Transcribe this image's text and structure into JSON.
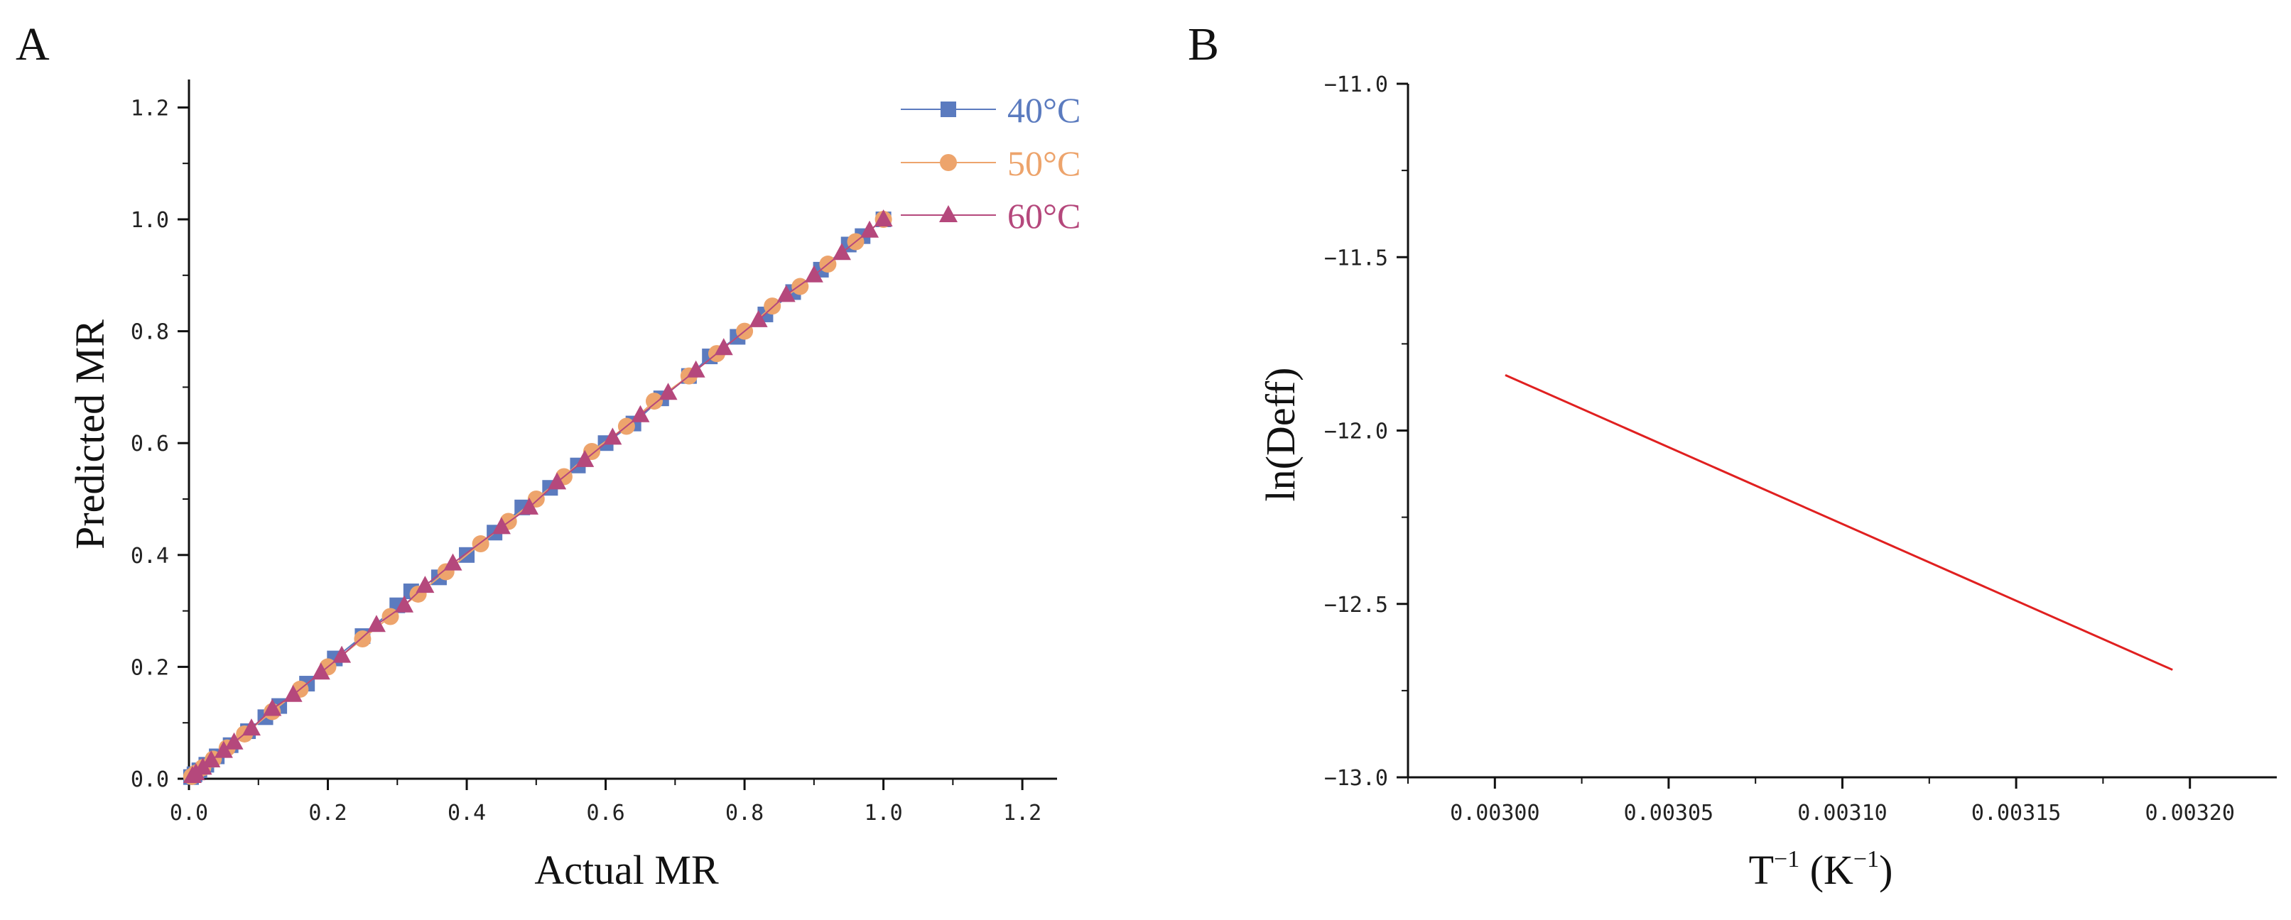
{
  "panel_a_label": "A",
  "panel_b_label": "B",
  "chart_data": [
    {
      "type": "scatter",
      "panel": "A",
      "title": "",
      "xlabel": "Actual MR",
      "ylabel": "Predicted MR",
      "xlim": [
        0,
        1.25
      ],
      "ylim": [
        0,
        1.25
      ],
      "xticks": [
        0.0,
        0.2,
        0.4,
        0.6,
        0.8,
        1.0,
        1.2
      ],
      "yticks": [
        0.0,
        0.2,
        0.4,
        0.6,
        0.8,
        1.0,
        1.2
      ],
      "xtick_labels": [
        "0.0",
        "0.2",
        "0.4",
        "0.6",
        "0.8",
        "1.0",
        "1.2"
      ],
      "ytick_labels": [
        "0.0",
        "0.2",
        "0.4",
        "0.6",
        "0.8",
        "1.0",
        "1.2"
      ],
      "grid": false,
      "legend_position": "top-right",
      "series": [
        {
          "name": "40°C",
          "marker": "square",
          "color": "#5b7bbf",
          "x": [
            1.0,
            0.97,
            0.95,
            0.91,
            0.87,
            0.83,
            0.79,
            0.75,
            0.72,
            0.68,
            0.64,
            0.6,
            0.56,
            0.52,
            0.48,
            0.44,
            0.4,
            0.36,
            0.32,
            0.3,
            0.25,
            0.21,
            0.17,
            0.13,
            0.11,
            0.085,
            0.06,
            0.04,
            0.025,
            0.015,
            0.008,
            0.003
          ],
          "y": [
            1.0,
            0.97,
            0.955,
            0.91,
            0.87,
            0.83,
            0.79,
            0.755,
            0.72,
            0.68,
            0.635,
            0.6,
            0.56,
            0.52,
            0.485,
            0.44,
            0.4,
            0.36,
            0.335,
            0.31,
            0.255,
            0.215,
            0.17,
            0.13,
            0.11,
            0.085,
            0.06,
            0.04,
            0.025,
            0.015,
            0.008,
            0.003
          ]
        },
        {
          "name": "50°C",
          "marker": "circle",
          "color": "#eda46c",
          "x": [
            1.0,
            0.96,
            0.92,
            0.88,
            0.84,
            0.8,
            0.76,
            0.72,
            0.67,
            0.63,
            0.58,
            0.54,
            0.5,
            0.46,
            0.42,
            0.37,
            0.33,
            0.29,
            0.25,
            0.2,
            0.16,
            0.12,
            0.08,
            0.055,
            0.035,
            0.02,
            0.01,
            0.004
          ],
          "y": [
            1.0,
            0.96,
            0.92,
            0.88,
            0.845,
            0.8,
            0.76,
            0.72,
            0.675,
            0.63,
            0.585,
            0.54,
            0.5,
            0.46,
            0.42,
            0.37,
            0.33,
            0.29,
            0.25,
            0.2,
            0.16,
            0.12,
            0.08,
            0.055,
            0.035,
            0.02,
            0.01,
            0.004
          ]
        },
        {
          "name": "60°C",
          "marker": "triangle",
          "color": "#b5487c",
          "x": [
            1.0,
            0.98,
            0.94,
            0.9,
            0.86,
            0.82,
            0.77,
            0.73,
            0.69,
            0.65,
            0.61,
            0.57,
            0.53,
            0.49,
            0.45,
            0.38,
            0.34,
            0.31,
            0.27,
            0.22,
            0.19,
            0.15,
            0.12,
            0.09,
            0.065,
            0.05,
            0.032,
            0.02,
            0.01,
            0.005
          ],
          "y": [
            1.0,
            0.98,
            0.94,
            0.9,
            0.865,
            0.82,
            0.77,
            0.73,
            0.69,
            0.65,
            0.61,
            0.57,
            0.53,
            0.485,
            0.45,
            0.385,
            0.345,
            0.31,
            0.275,
            0.22,
            0.19,
            0.15,
            0.125,
            0.09,
            0.065,
            0.05,
            0.033,
            0.02,
            0.01,
            0.005
          ]
        }
      ]
    },
    {
      "type": "line",
      "panel": "B",
      "title": "",
      "xlabel": "T",
      "xlabel_exponent": "−1",
      "xlabel_unit_open": " (K",
      "xlabel_unit_exponent": "−1",
      "xlabel_unit_close": ")",
      "ylabel": "ln(Deff)",
      "xlim": [
        0.002975,
        0.003225
      ],
      "ylim": [
        -13.0,
        -11.0
      ],
      "xticks": [
        0.003,
        0.00305,
        0.0031,
        0.00315,
        0.0032
      ],
      "xtick_labels": [
        "0.00300",
        "0.00305",
        "0.00310",
        "0.00315",
        "0.00320"
      ],
      "yticks": [
        -13.0,
        -12.5,
        -12.0,
        -11.5,
        -11.0
      ],
      "ytick_labels": [
        "−13.0",
        "−12.5",
        "−12.0",
        "−11.5",
        "−11.0"
      ],
      "grid": false,
      "series": [
        {
          "name": "ln(Deff)",
          "color": "#e02020",
          "x": [
            0.003003,
            0.003195
          ],
          "y": [
            -11.84,
            -12.69
          ]
        }
      ]
    }
  ]
}
